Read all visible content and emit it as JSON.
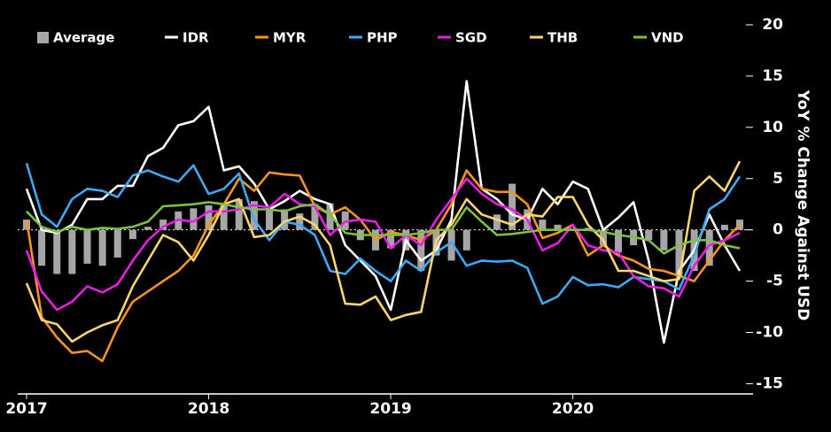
{
  "chart_data": {
    "type": "combo",
    "y_axis_label": "YoY % Change Against USD",
    "categories": [
      "2017",
      null,
      null,
      null,
      null,
      null,
      null,
      null,
      null,
      null,
      null,
      null,
      "2018",
      null,
      null,
      null,
      null,
      null,
      null,
      null,
      null,
      null,
      null,
      null,
      "2019",
      null,
      null,
      null,
      null,
      null,
      null,
      null,
      null,
      null,
      null,
      null,
      "2020",
      null,
      null,
      null,
      null,
      null,
      null,
      null,
      null,
      null,
      null,
      null
    ],
    "ylim": [
      -16,
      20
    ],
    "yticks": [
      -15,
      -10,
      -5,
      0,
      5,
      10,
      15,
      20
    ],
    "legend": "top-left",
    "series": [
      {
        "name": "Average",
        "type": "bar",
        "color": "#a6a6a6",
        "values": [
          1,
          -3.5,
          -4.3,
          -4.3,
          -3.3,
          -3.5,
          -2.7,
          -0.9,
          0.3,
          1,
          1.8,
          2.1,
          2.4,
          2.6,
          3,
          2.8,
          2.2,
          2,
          1.6,
          2.5,
          2.6,
          1.8,
          -1,
          -2,
          -1.8,
          -2,
          -4,
          -2.5,
          -3,
          -2,
          0,
          1.5,
          4.5,
          2,
          1,
          0.5,
          0,
          0.2,
          -1.5,
          -2.2,
          -1.5,
          -1,
          -2,
          -4.5,
          -4,
          -3.5,
          0.5,
          1
        ]
      },
      {
        "name": "IDR",
        "type": "line",
        "color": "#ffffff",
        "values": [
          4,
          0,
          -0.3,
          0.5,
          3,
          3,
          4.3,
          4.3,
          7.2,
          8,
          10.2,
          10.6,
          12,
          5.8,
          6.2,
          4.5,
          2,
          2.8,
          3.8,
          3,
          2.5,
          -1.5,
          -3,
          -4.5,
          -7.8,
          -1,
          -3,
          -2,
          1,
          14.5,
          4,
          3,
          1.5,
          1,
          4,
          2.5,
          4.7,
          4,
          0,
          1.2,
          2.7,
          -3,
          -11,
          -4,
          -2,
          1.5,
          -1.5,
          -4
        ]
      },
      {
        "name": "MYR",
        "type": "line",
        "color": "#f7941d",
        "values": [
          1,
          -8.5,
          -10.5,
          -12,
          -11.8,
          -12.8,
          -9.5,
          -7,
          -6,
          -5,
          -4,
          -2.5,
          0.5,
          2.5,
          5,
          3.8,
          5.6,
          5.4,
          5.3,
          2.3,
          1.5,
          2.2,
          1,
          -1,
          -0.2,
          -0.5,
          -1,
          0,
          2.5,
          5.8,
          4,
          3.7,
          3.7,
          2.5,
          -0.8,
          -0.3,
          0.5,
          -2.5,
          -1.5,
          -2.5,
          -3,
          -3.8,
          -4,
          -4.5,
          -5,
          -3,
          -1,
          0.5
        ]
      },
      {
        "name": "PHP",
        "type": "line",
        "color": "#3fa9f5",
        "values": [
          6.5,
          1.5,
          0.3,
          3,
          4,
          3.8,
          3.2,
          5.3,
          5.8,
          5.2,
          4.7,
          6.3,
          3.5,
          4,
          5.5,
          1,
          -1,
          0.8,
          0.5,
          -0.5,
          -4,
          -4.3,
          -2.8,
          -4,
          -5,
          -3,
          -4,
          -2.2,
          -1.2,
          -3.5,
          -3,
          -3.1,
          -3,
          -3.7,
          -7.2,
          -6.5,
          -4.6,
          -5.4,
          -5.3,
          -5.6,
          -4.6,
          -4.8,
          -5,
          -5.8,
          -2.5,
          2,
          3,
          5.2
        ]
      },
      {
        "name": "SGD",
        "type": "line",
        "color": "#e91ee6",
        "values": [
          -2,
          -6,
          -7.8,
          -7,
          -5.5,
          -6.1,
          -5.3,
          -3,
          -1,
          0.3,
          1,
          0.8,
          1.8,
          1.8,
          2,
          2.4,
          2.2,
          3.5,
          2.5,
          2.3,
          -0.5,
          0.8,
          1,
          0.8,
          -1.8,
          -0.5,
          -1.5,
          1,
          3,
          5,
          3.5,
          2.5,
          2,
          1,
          -2,
          -1.3,
          0.5,
          -1.5,
          -2,
          -2.2,
          -4.5,
          -5.5,
          -5.7,
          -6.5,
          -3.5,
          -1.5,
          -1,
          -0.3
        ]
      },
      {
        "name": "THB",
        "type": "line",
        "color": "#f9d56e",
        "values": [
          -5.2,
          -8.8,
          -9.2,
          -10.9,
          -10,
          -9.3,
          -8.8,
          -5.5,
          -3,
          -0.5,
          -1.2,
          -3,
          -0.5,
          2.5,
          3,
          -0.7,
          -0.5,
          0.8,
          1.3,
          0.5,
          -1.5,
          -7.2,
          -7.3,
          -6.5,
          -8.8,
          -8.3,
          -8,
          -1,
          0.5,
          3,
          1.5,
          1,
          0.5,
          1.5,
          1.3,
          3.2,
          3.2,
          0.5,
          -1,
          -4,
          -4,
          -4.5,
          -5,
          -4.8,
          3.8,
          5.2,
          3.8,
          6.7
        ]
      },
      {
        "name": "VND",
        "type": "line",
        "color": "#7cc142",
        "values": [
          1.8,
          0.3,
          -0.2,
          0.3,
          0,
          0.2,
          0.1,
          0.3,
          0.8,
          2.3,
          2.4,
          2.5,
          2.7,
          2.5,
          2.2,
          2,
          2,
          1.8,
          2.3,
          2.5,
          1.5,
          -0.3,
          -0.5,
          -0.5,
          -0.5,
          -0.5,
          -0.3,
          0,
          0,
          2.2,
          0.8,
          -0.5,
          -0.4,
          -0.2,
          0,
          0,
          0,
          0,
          -0.2,
          -0.5,
          -0.7,
          -1,
          -2.3,
          -1.5,
          -1,
          -1,
          -1.5,
          -1.8
        ]
      }
    ]
  }
}
